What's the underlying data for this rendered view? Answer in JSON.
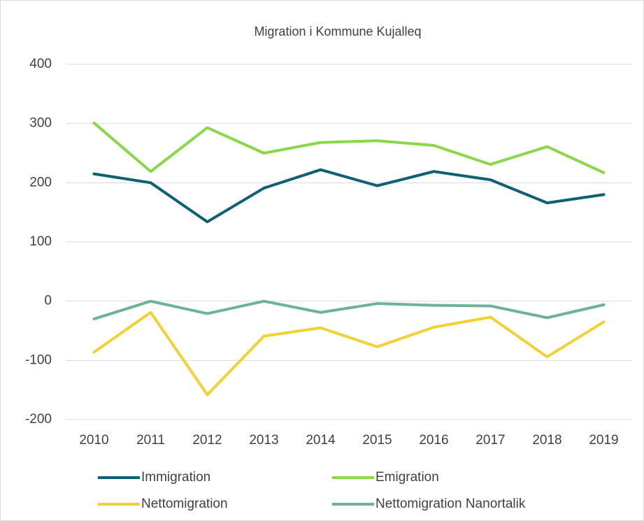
{
  "chart_data": {
    "type": "line",
    "title": "Migration i Kommune Kujalleq",
    "categories": [
      "2010",
      "2011",
      "2012",
      "2013",
      "2014",
      "2015",
      "2016",
      "2017",
      "2018",
      "2019"
    ],
    "series": [
      {
        "name": "Immigration",
        "color": "#0e6073",
        "values": [
          215,
          200,
          134,
          191,
          222,
          195,
          219,
          205,
          166,
          180
        ]
      },
      {
        "name": "Emigration",
        "color": "#8ad84a",
        "values": [
          301,
          219,
          293,
          250,
          268,
          271,
          263,
          231,
          261,
          217
        ]
      },
      {
        "name": "Nettomigration",
        "color": "#f0d233",
        "values": [
          -86,
          -19,
          -158,
          -59,
          -45,
          -77,
          -44,
          -27,
          -94,
          -35
        ]
      },
      {
        "name": "Nettomigration Nanortalik",
        "color": "#6db39a",
        "values": [
          -30,
          0,
          -21,
          0,
          -19,
          -4,
          -7,
          -8,
          -28,
          -6
        ]
      }
    ],
    "ylim": [
      -200,
      400
    ],
    "yticks": [
      -200,
      -100,
      0,
      100,
      200,
      300,
      400
    ],
    "grid": true,
    "legend": "bottom"
  }
}
